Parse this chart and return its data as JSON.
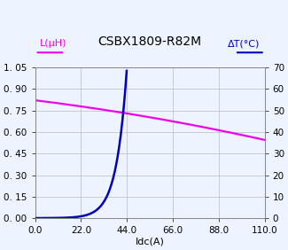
{
  "title": "CSBX1809-R82M",
  "xlabel": "Idc(A)",
  "ylabel_left": "L(μH)",
  "ylabel_right": "ΔT(°C)",
  "x_ticks": [
    0.0,
    22.0,
    44.0,
    66.0,
    88.0,
    110.0
  ],
  "xlim": [
    0.0,
    110.0
  ],
  "ylim_left": [
    0.0,
    1.05
  ],
  "ylim_right": [
    0,
    70
  ],
  "yticks_left": [
    0.0,
    0.15,
    0.3,
    0.45,
    0.6,
    0.75,
    0.9,
    1.05
  ],
  "yticks_right": [
    0,
    10,
    20,
    30,
    40,
    50,
    60,
    70
  ],
  "inductance_color": "#ee00ee",
  "temperature_color": "#0000bb",
  "background_color": "#eef4ff",
  "grid_color": "#bbbbbb",
  "border_color": "#888888",
  "title_fontsize": 10,
  "axis_label_fontsize": 8,
  "tick_fontsize": 7.5,
  "legend_fontsize": 8
}
